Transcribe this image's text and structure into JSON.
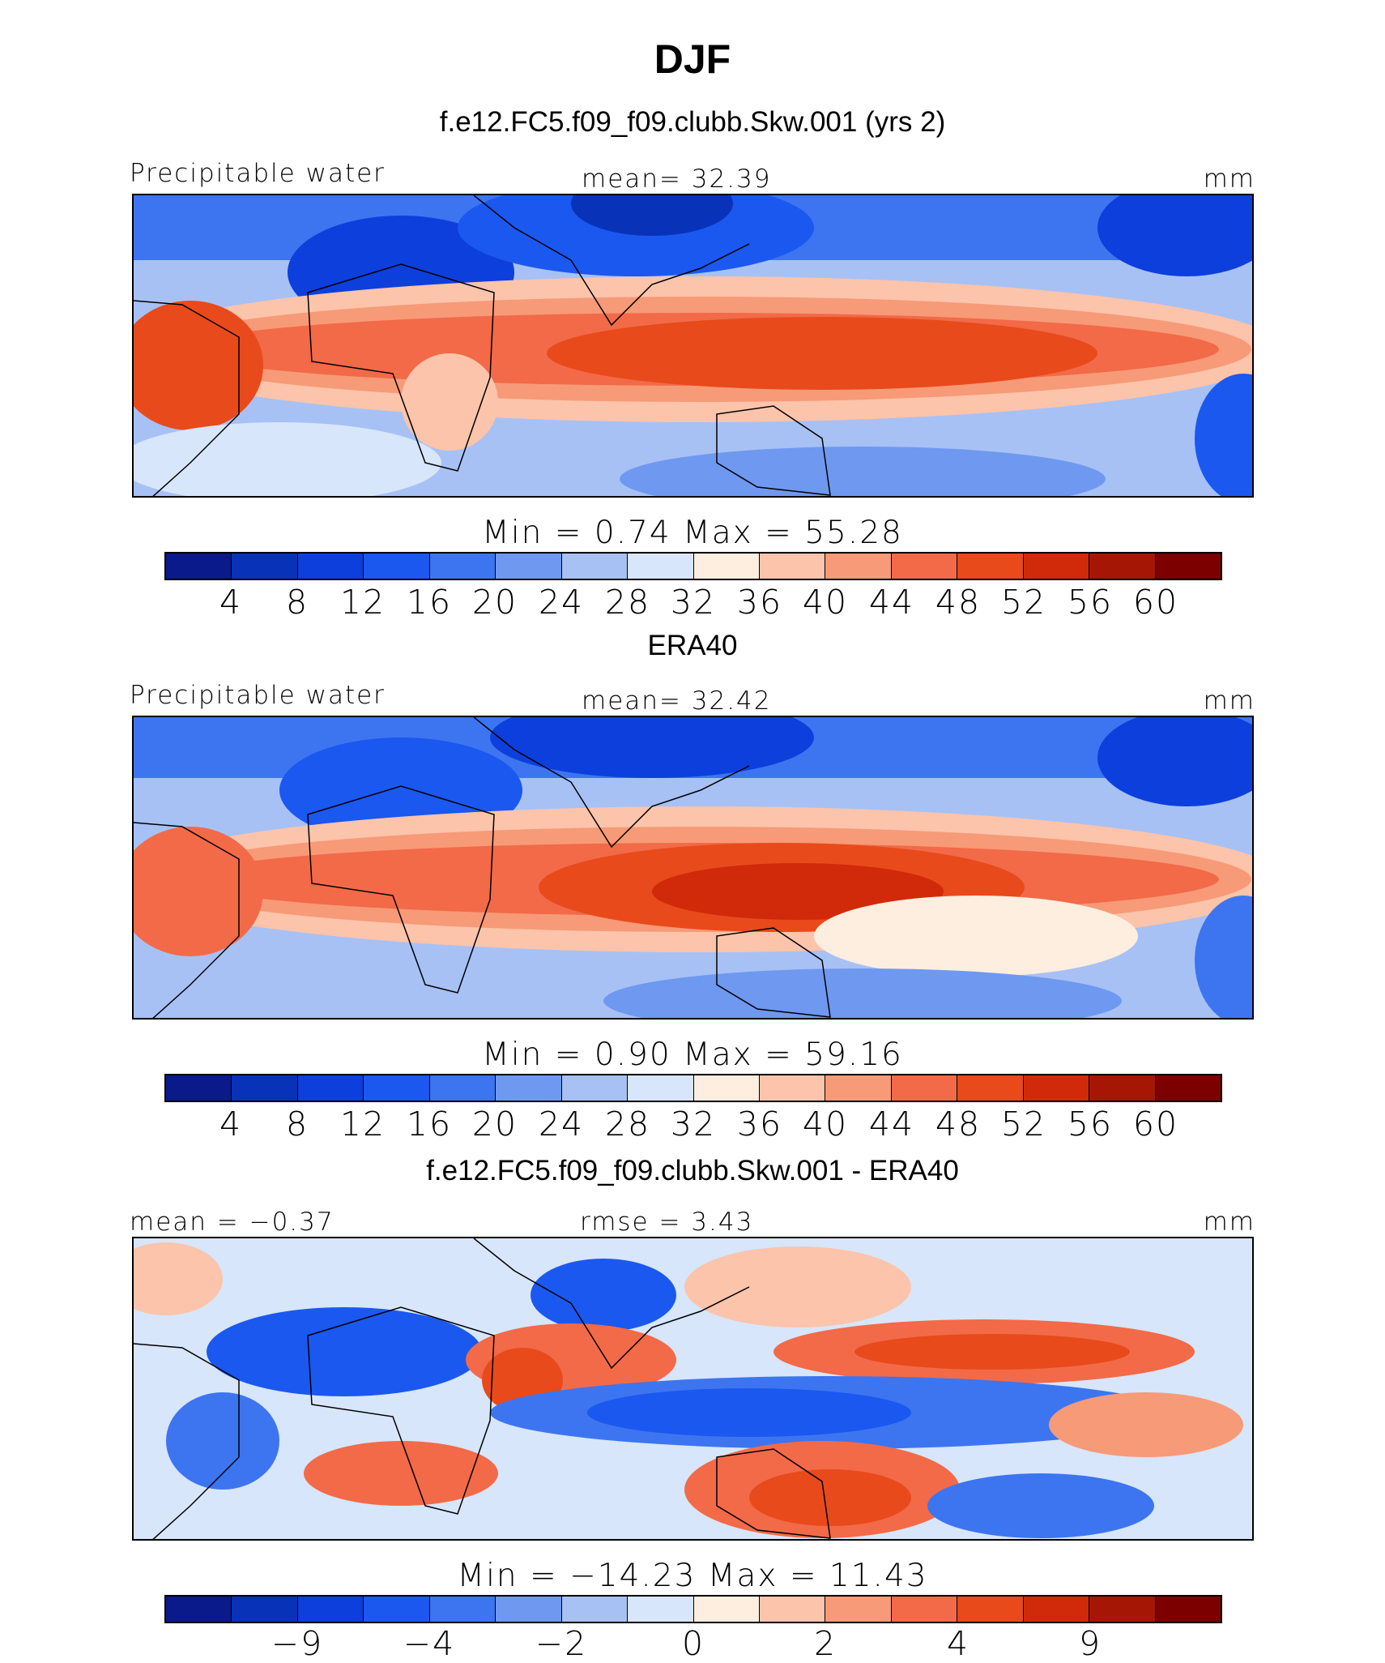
{
  "title": "DJF",
  "colors": [
    "#0a1a8a",
    "#0832b8",
    "#0d3fdc",
    "#1a58f0",
    "#3d75f0",
    "#6f98f0",
    "#a7c1f5",
    "#d7e6fa",
    "#feeee0",
    "#fbc4ab",
    "#f79a78",
    "#f26a48",
    "#e84a1c",
    "#d12a0a",
    "#a61605",
    "#7c0000"
  ],
  "panels": [
    {
      "subtitle": "f.e12.FC5.f09_f09.clubb.Skw.001 (yrs 2)",
      "left_label": "Precipitable water",
      "center_label": "mean=   32.39",
      "right_label": "mm",
      "min_max": "Min  =    0.74  Max  =    55.28",
      "ticks": [
        "4",
        "8",
        "12",
        "16",
        "20",
        "24",
        "28",
        "32",
        "36",
        "40",
        "44",
        "48",
        "52",
        "56",
        "60"
      ]
    },
    {
      "subtitle": "ERA40",
      "left_label": "Precipitable water",
      "center_label": "mean=   32.42",
      "right_label": "mm",
      "min_max": "Min  =    0.90  Max  =    59.16",
      "ticks": [
        "4",
        "8",
        "12",
        "16",
        "20",
        "24",
        "28",
        "32",
        "36",
        "40",
        "44",
        "48",
        "52",
        "56",
        "60"
      ]
    },
    {
      "subtitle": "f.e12.FC5.f09_f09.clubb.Skw.001 - ERA40",
      "left_label": "mean =   −0.37",
      "center_label": "rmse =    3.43",
      "right_label": "mm",
      "min_max": "Min  = −14.23  Max  =    11.43",
      "ticks": [
        "−9",
        "−4",
        "−2",
        "0",
        "2",
        "4",
        "9"
      ]
    }
  ],
  "chart_data": [
    {
      "type": "heatmap",
      "title": "DJF",
      "subtitle": "f.e12.FC5.f09_f09.clubb.Skw.001 (yrs 2)",
      "variable": "Precipitable water",
      "units": "mm",
      "mean": 32.39,
      "min": 0.74,
      "max": 55.28,
      "contour_levels": [
        4,
        8,
        12,
        16,
        20,
        24,
        28,
        32,
        36,
        40,
        44,
        48,
        52,
        56,
        60
      ]
    },
    {
      "type": "heatmap",
      "title": "ERA40",
      "variable": "Precipitable water",
      "units": "mm",
      "mean": 32.42,
      "min": 0.9,
      "max": 59.16,
      "contour_levels": [
        4,
        8,
        12,
        16,
        20,
        24,
        28,
        32,
        36,
        40,
        44,
        48,
        52,
        56,
        60
      ]
    },
    {
      "type": "heatmap",
      "title": "f.e12.FC5.f09_f09.clubb.Skw.001 - ERA40",
      "units": "mm",
      "mean": -0.37,
      "rmse": 3.43,
      "min": -14.23,
      "max": 11.43,
      "contour_levels": [
        -9,
        -4,
        -2,
        0,
        2,
        4,
        9
      ]
    }
  ]
}
